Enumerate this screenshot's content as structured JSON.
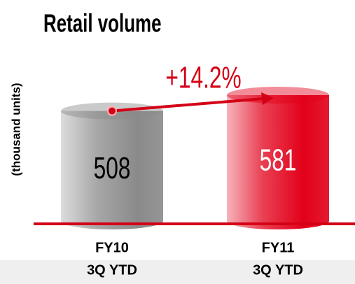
{
  "chart_data": {
    "type": "cylinder",
    "title": "Retail volume",
    "y_label": "(thousand units)",
    "categories": [
      [
        "FY10",
        "3Q YTD"
      ],
      [
        "FY11",
        "3Q YTD"
      ]
    ],
    "values": [
      508,
      581
    ],
    "colors": [
      "#8a8a8a",
      "#e2001a"
    ],
    "label_colors": [
      "#000000",
      "#ffffff"
    ],
    "annotation": "+14.2%",
    "annotation_color": "#d40016"
  }
}
